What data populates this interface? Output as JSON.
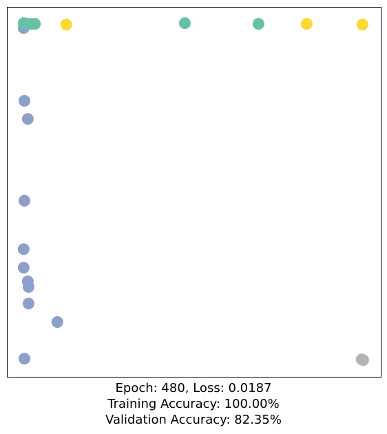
{
  "chart_data": {
    "type": "scatter",
    "title_lines": [
      "Epoch: 480, Loss: 0.0187",
      "Training Accuracy: 100.00%",
      "Validation Accuracy: 82.35%"
    ],
    "xlim": [
      0,
      1
    ],
    "ylim": [
      0,
      1
    ],
    "series": [
      {
        "color": "#8da0cb",
        "x": [
          0.044,
          0.046,
          0.055,
          0.046,
          0.044,
          0.044,
          0.055,
          0.057,
          0.057,
          0.134,
          0.046
        ],
        "y": [
          0.944,
          0.747,
          0.698,
          0.477,
          0.346,
          0.296,
          0.259,
          0.244,
          0.199,
          0.149,
          0.05
        ]
      },
      {
        "color": "#b3b3b3",
        "x": [
          0.948,
          0.952
        ],
        "y": [
          0.048,
          0.046
        ]
      },
      {
        "color": "#66c2a5",
        "x": [
          0.044,
          0.055,
          0.064,
          0.074,
          0.475,
          0.672
        ],
        "y": [
          0.957,
          0.955,
          0.955,
          0.955,
          0.957,
          0.955
        ]
      },
      {
        "color": "#ffd92f",
        "x": [
          0.158,
          0.801,
          0.95
        ],
        "y": [
          0.953,
          0.955,
          0.953
        ]
      }
    ]
  }
}
